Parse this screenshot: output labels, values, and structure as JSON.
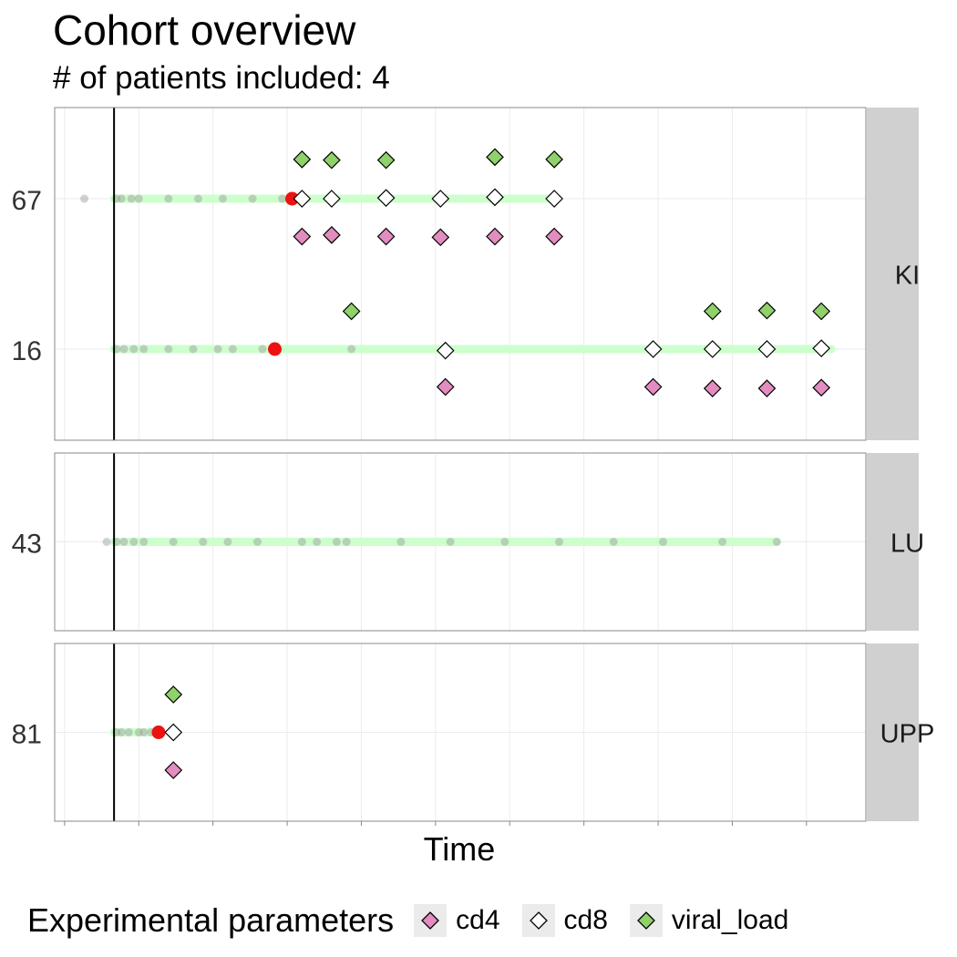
{
  "chart_data": {
    "type": "scatter",
    "title": "Cohort overview",
    "subtitle": "# of patients included: 4",
    "xlabel": "Time",
    "ylabel": "",
    "grid": true,
    "legend_position": "bottom",
    "legend": {
      "title": "Experimental parameters",
      "entries": [
        {
          "label": "cd4",
          "color": "#E38CBF"
        },
        {
          "label": "cd8",
          "color": "#FFFFFF"
        },
        {
          "label": "viral_load",
          "color": "#8FD16A"
        }
      ]
    },
    "colors": {
      "timeline": "#CCFFCC",
      "visit": "#999999",
      "event": "#EE1111",
      "strip": "#D0D0D0",
      "panel_border": "#888888"
    },
    "xlim": [
      -1.2,
      15.2
    ],
    "panels": [
      {
        "label": "KI",
        "patients": [
          {
            "id": "67",
            "timeline": [
              0,
              8.9
            ],
            "visits": [
              -0.6,
              0.05,
              0.15,
              0.35,
              0.5,
              1.1,
              1.7,
              2.2,
              2.8,
              3.4
            ],
            "event": 3.6,
            "cd4": [
              [
                3.8,
                50
              ],
              [
                4.4,
                52
              ],
              [
                5.5,
                50
              ],
              [
                6.6,
                49
              ],
              [
                7.7,
                50
              ],
              [
                8.9,
                50
              ]
            ],
            "cd8": [
              [
                3.8,
                100
              ],
              [
                4.4,
                100
              ],
              [
                5.5,
                101
              ],
              [
                6.6,
                100
              ],
              [
                7.7,
                102
              ],
              [
                8.9,
                100
              ]
            ],
            "viral_load": [
              [
                3.8,
                152
              ],
              [
                4.4,
                151
              ],
              [
                5.5,
                151
              ],
              [
                7.7,
                155
              ],
              [
                8.9,
                152
              ]
            ]
          },
          {
            "id": "16",
            "timeline": [
              0,
              14.5
            ],
            "visits": [
              0.05,
              0.2,
              0.4,
              0.6,
              1.1,
              1.6,
              2.1,
              2.4,
              3.0,
              4.8
            ],
            "event": 3.25,
            "cd4": [
              [
                6.7,
                50
              ],
              [
                10.9,
                50
              ],
              [
                12.1,
                48
              ],
              [
                13.2,
                48
              ],
              [
                14.3,
                49
              ]
            ],
            "cd8": [
              [
                6.7,
                98
              ],
              [
                10.9,
                100
              ],
              [
                12.1,
                100
              ],
              [
                13.2,
                100
              ],
              [
                14.3,
                101
              ]
            ],
            "viral_load": [
              [
                4.8,
                150
              ],
              [
                12.1,
                150
              ],
              [
                13.2,
                151
              ],
              [
                14.3,
                150
              ]
            ]
          }
        ]
      },
      {
        "label": "LU",
        "patients": [
          {
            "id": "43",
            "timeline": [
              0,
              13.4
            ],
            "visits": [
              -0.15,
              0.05,
              0.2,
              0.4,
              0.6,
              1.2,
              1.8,
              2.3,
              2.9,
              3.8,
              4.1,
              4.5,
              4.7,
              5.8,
              6.8,
              7.9,
              9.0,
              10.1,
              11.1,
              12.3,
              13.4
            ],
            "event": null,
            "cd4": [],
            "cd8": [],
            "viral_load": []
          }
        ]
      },
      {
        "label": "UPP",
        "patients": [
          {
            "id": "81",
            "timeline": [
              0,
              0.9
            ],
            "visits": [
              0.05,
              0.15,
              0.3,
              0.5,
              0.6,
              0.75
            ],
            "event": 0.9,
            "cd4": [
              [
                1.2,
                50
              ]
            ],
            "cd8": [
              [
                1.2,
                100
              ]
            ],
            "viral_load": [
              [
                1.2,
                150
              ]
            ]
          }
        ]
      }
    ]
  }
}
